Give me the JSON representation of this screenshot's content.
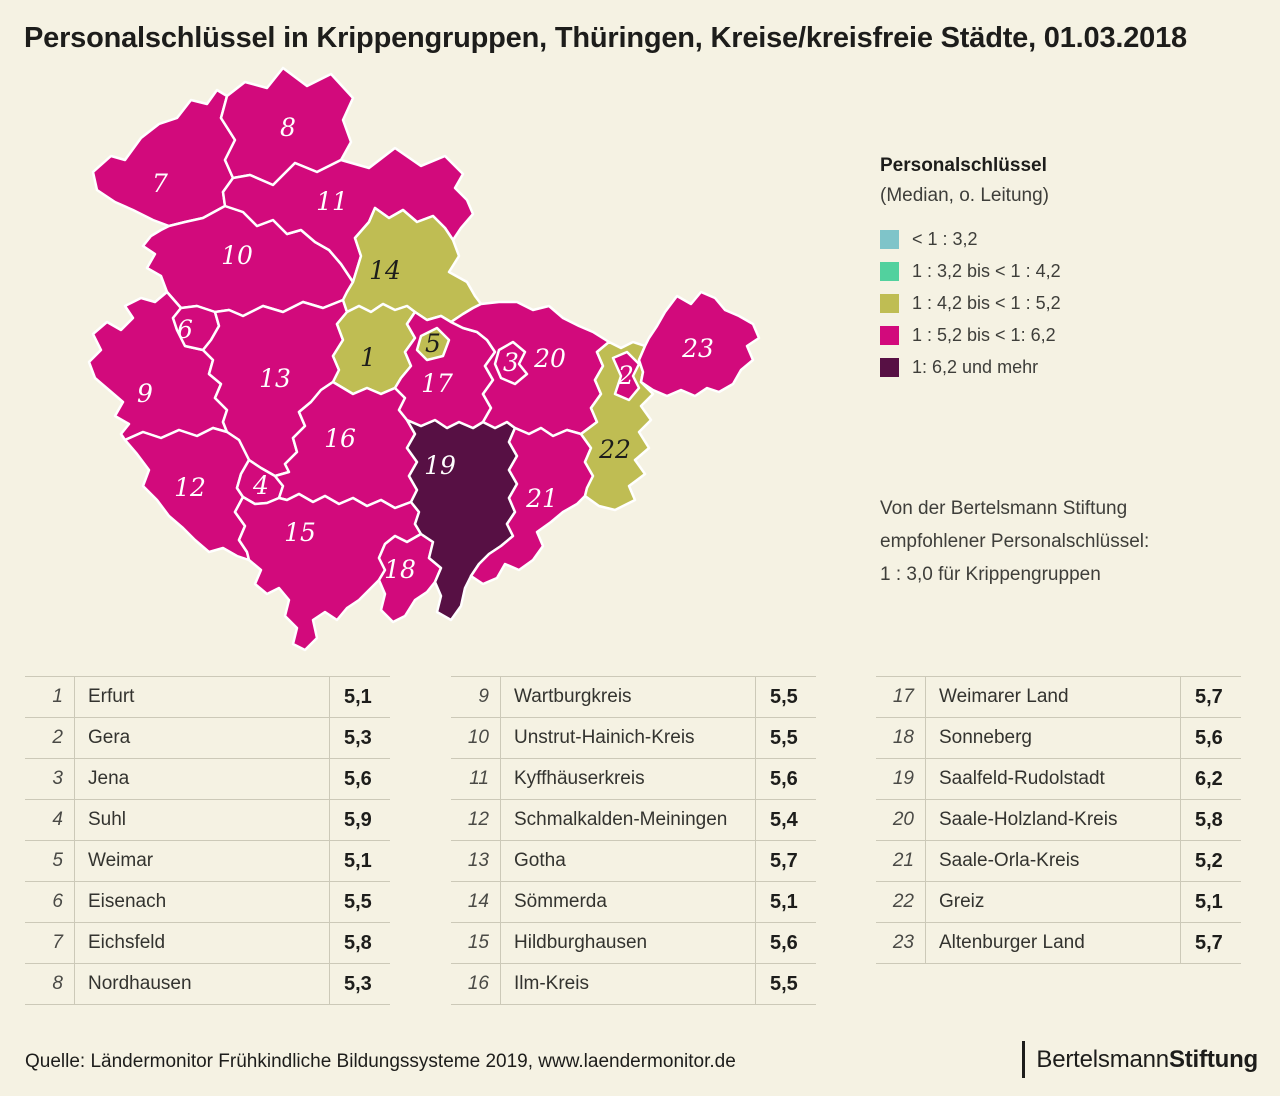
{
  "title": "Personalschlüssel in Krippengruppen, Thüringen, Kreise/kreisfreie Städte, 01.03.2018",
  "legend": {
    "title": "Personalschlüssel",
    "subtitle": "(Median, o. Leitung)",
    "items": [
      {
        "label": "< 1 : 3,2",
        "hex": "#7fc4c9"
      },
      {
        "label": "1 : 3,2 bis < 1 : 4,2",
        "hex": "#52d19e"
      },
      {
        "label": "1 : 4,2 bis < 1 : 5,2",
        "hex": "#bfbd53"
      },
      {
        "label": "1 : 5,2 bis < 1: 6,2",
        "hex": "#d20a7c"
      },
      {
        "label": "1: 6,2 und mehr",
        "hex": "#571044"
      }
    ]
  },
  "note": {
    "line1": "Von der Bertelsmann Stiftung",
    "line2": "empfohlener Personalschlüssel:",
    "line3": "1 : 3,0 für Krippengruppen"
  },
  "chart_data": {
    "type": "choropleth_map",
    "title": "Personalschlüssel in Krippengruppen, Thüringen, Kreise/kreisfreie Städte, 01.03.2018",
    "legend_bins": [
      "< 1 : 3,2",
      "1 : 3,2 bis < 1 : 4,2",
      "1 : 4,2 bis < 1 : 5,2",
      "1 : 5,2 bis < 1: 6,2",
      "1: 6,2 und mehr"
    ],
    "regions": [
      {
        "id": 1,
        "name": "Erfurt",
        "value": 5.1,
        "label": "5,1",
        "bin": 2
      },
      {
        "id": 2,
        "name": "Gera",
        "value": 5.3,
        "label": "5,3",
        "bin": 3
      },
      {
        "id": 3,
        "name": "Jena",
        "value": 5.6,
        "label": "5,6",
        "bin": 3
      },
      {
        "id": 4,
        "name": "Suhl",
        "value": 5.9,
        "label": "5,9",
        "bin": 3
      },
      {
        "id": 5,
        "name": "Weimar",
        "value": 5.1,
        "label": "5,1",
        "bin": 2
      },
      {
        "id": 6,
        "name": "Eisenach",
        "value": 5.5,
        "label": "5,5",
        "bin": 3
      },
      {
        "id": 7,
        "name": "Eichsfeld",
        "value": 5.8,
        "label": "5,8",
        "bin": 3
      },
      {
        "id": 8,
        "name": "Nordhausen",
        "value": 5.3,
        "label": "5,3",
        "bin": 3
      },
      {
        "id": 9,
        "name": "Wartburgkreis",
        "value": 5.5,
        "label": "5,5",
        "bin": 3
      },
      {
        "id": 10,
        "name": "Unstrut-Hainich-Kreis",
        "value": 5.5,
        "label": "5,5",
        "bin": 3
      },
      {
        "id": 11,
        "name": "Kyffhäuserkreis",
        "value": 5.6,
        "label": "5,6",
        "bin": 3
      },
      {
        "id": 12,
        "name": "Schmalkalden-Meiningen",
        "value": 5.4,
        "label": "5,4",
        "bin": 3
      },
      {
        "id": 13,
        "name": "Gotha",
        "value": 5.7,
        "label": "5,7",
        "bin": 3
      },
      {
        "id": 14,
        "name": "Sömmerda",
        "value": 5.1,
        "label": "5,1",
        "bin": 2
      },
      {
        "id": 15,
        "name": "Hildburghausen",
        "value": 5.6,
        "label": "5,6",
        "bin": 3
      },
      {
        "id": 16,
        "name": "Ilm-Kreis",
        "value": 5.5,
        "label": "5,5",
        "bin": 3
      },
      {
        "id": 17,
        "name": "Weimarer Land",
        "value": 5.7,
        "label": "5,7",
        "bin": 3
      },
      {
        "id": 18,
        "name": "Sonneberg",
        "value": 5.6,
        "label": "5,6",
        "bin": 3
      },
      {
        "id": 19,
        "name": "Saalfeld-Rudolstadt",
        "value": 6.2,
        "label": "6,2",
        "bin": 4
      },
      {
        "id": 20,
        "name": "Saale-Holzland-Kreis",
        "value": 5.8,
        "label": "5,8",
        "bin": 3
      },
      {
        "id": 21,
        "name": "Saale-Orla-Kreis",
        "value": 5.2,
        "label": "5,2",
        "bin": 3
      },
      {
        "id": 22,
        "name": "Greiz",
        "value": 5.1,
        "label": "5,1",
        "bin": 2
      },
      {
        "id": 23,
        "name": "Altenburger Land",
        "value": 5.7,
        "label": "5,7",
        "bin": 3
      }
    ]
  },
  "tables": [
    {
      "rows": [
        {
          "num": "1",
          "name": "Erfurt",
          "value": "5,1"
        },
        {
          "num": "2",
          "name": "Gera",
          "value": "5,3"
        },
        {
          "num": "3",
          "name": "Jena",
          "value": "5,6"
        },
        {
          "num": "4",
          "name": "Suhl",
          "value": "5,9"
        },
        {
          "num": "5",
          "name": "Weimar",
          "value": "5,1"
        },
        {
          "num": "6",
          "name": "Eisenach",
          "value": "5,5"
        },
        {
          "num": "7",
          "name": "Eichsfeld",
          "value": "5,8"
        },
        {
          "num": "8",
          "name": "Nordhausen",
          "value": "5,3"
        }
      ]
    },
    {
      "rows": [
        {
          "num": "9",
          "name": "Wartburgkreis",
          "value": "5,5"
        },
        {
          "num": "10",
          "name": "Unstrut-Hainich-Kreis",
          "value": "5,5"
        },
        {
          "num": "11",
          "name": "Kyffhäuserkreis",
          "value": "5,6"
        },
        {
          "num": "12",
          "name": "Schmalkalden-Meiningen",
          "value": "5,4"
        },
        {
          "num": "13",
          "name": "Gotha",
          "value": "5,7"
        },
        {
          "num": "14",
          "name": "Sömmerda",
          "value": "5,1"
        },
        {
          "num": "15",
          "name": "Hildburghausen",
          "value": "5,6"
        },
        {
          "num": "16",
          "name": "Ilm-Kreis",
          "value": "5,5"
        }
      ]
    },
    {
      "rows": [
        {
          "num": "17",
          "name": "Weimarer Land",
          "value": "5,7"
        },
        {
          "num": "18",
          "name": "Sonneberg",
          "value": "5,6"
        },
        {
          "num": "19",
          "name": "Saalfeld-Rudolstadt",
          "value": "6,2"
        },
        {
          "num": "20",
          "name": "Saale-Holzland-Kreis",
          "value": "5,8"
        },
        {
          "num": "21",
          "name": "Saale-Orla-Kreis",
          "value": "5,2"
        },
        {
          "num": "22",
          "name": "Greiz",
          "value": "5,1"
        },
        {
          "num": "23",
          "name": "Altenburger Land",
          "value": "5,7"
        }
      ]
    }
  ],
  "footer": {
    "source": "Quelle: Ländermonitor Frühkindliche Bildungssysteme 2019, www.laendermonitor.de",
    "logo_light": "Bertelsmann",
    "logo_bold": "Stiftung"
  }
}
